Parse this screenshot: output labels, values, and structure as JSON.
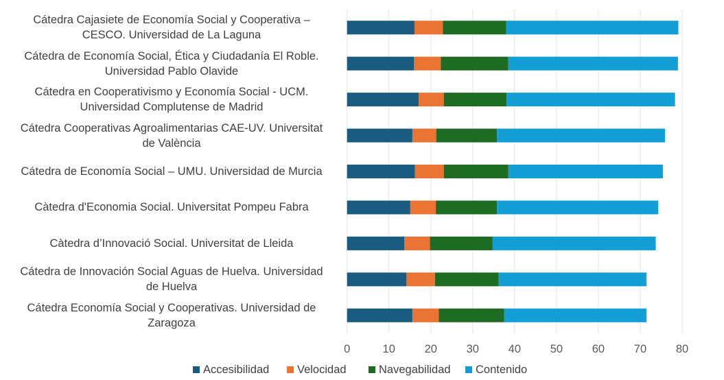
{
  "chart_data": {
    "type": "bar",
    "orientation": "horizontal",
    "stacked": true,
    "title": "",
    "xlabel": "",
    "ylabel": "",
    "xlim": [
      0,
      80
    ],
    "x_ticks": [
      0,
      10,
      20,
      30,
      40,
      50,
      60,
      70,
      80
    ],
    "grid": "vertical",
    "legend_position": "bottom",
    "categories": [
      "Cátedra Cajasiete de Economía Social y Cooperativa – CESCO. Universidad de La Laguna",
      "Cátedra de Economía Social, Ética y Ciudadanía El Roble. Universidad Pablo Olavide",
      "Cátedra en Cooperativismo y Economía Social - UCM. Universidad Complutense de Madrid",
      "Cátedra Cooperativas Agroalimentarias CAE-UV. Universitat de València",
      "Cátedra de Economía Social – UMU. Universidad de Murcia",
      "Càtedra d'Economia Social. Universitat Pompeu Fabra",
      "Càtedra d’Innovació Social. Universitat de Lleida",
      "Cátedra de Innovación Social Aguas de Huelva. Universidad de Huelva",
      "Cátedra Economía Social y Cooperativas. Universidad de Zaragoza"
    ],
    "category_lines": [
      [
        "Cátedra Cajasiete de Economía Social y Cooperativa –",
        "CESCO. Universidad de La Laguna"
      ],
      [
        "Cátedra de Economía Social, Ética y Ciudadanía El Roble.",
        "Universidad Pablo Olavide"
      ],
      [
        "Cátedra en Cooperativismo y Economía Social - UCM.",
        "Universidad Complutense de Madrid"
      ],
      [
        "Cátedra Cooperativas Agroalimentarias CAE-UV. Universitat",
        "de València"
      ],
      [
        "Cátedra de Economía Social – UMU. Universidad de Murcia"
      ],
      [
        "Càtedra d'Economia Social. Universitat Pompeu Fabra"
      ],
      [
        "Càtedra d’Innovació Social. Universitat de Lleida"
      ],
      [
        "Cátedra de Innovación Social Aguas de Huelva. Universidad",
        "de Huelva"
      ],
      [
        "Cátedra Economía Social y Cooperativas. Universidad de",
        "Zaragoza"
      ]
    ],
    "series": [
      {
        "name": "Accesibilidad",
        "color": "#1a5c80",
        "values": [
          16.1,
          16.0,
          17.1,
          15.6,
          16.2,
          15.1,
          13.7,
          14.2,
          15.6
        ]
      },
      {
        "name": "Velocidad",
        "color": "#e97434",
        "values": [
          6.8,
          6.4,
          6.0,
          5.7,
          6.9,
          6.1,
          6.1,
          6.8,
          6.3
        ]
      },
      {
        "name": "Navegabilidad",
        "color": "#1e6b24",
        "values": [
          15.1,
          16.1,
          15.0,
          14.5,
          15.4,
          14.6,
          14.9,
          15.2,
          15.6
        ]
      },
      {
        "name": "Contenido",
        "color": "#139ed6",
        "values": [
          41.1,
          40.5,
          40.2,
          40.1,
          36.9,
          38.5,
          39.0,
          35.3,
          34.0
        ]
      }
    ]
  }
}
